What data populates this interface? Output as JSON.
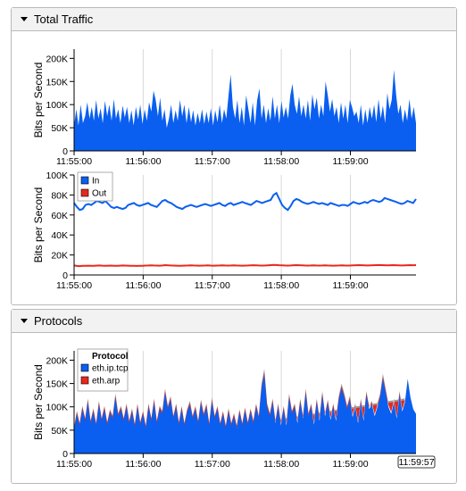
{
  "panels": [
    {
      "title": "Total Traffic"
    },
    {
      "title": "Protocols"
    }
  ],
  "colors": {
    "blue": "#0a5ff0",
    "red": "#e8281c",
    "gray": "#9a9a9a"
  },
  "chart_data": [
    {
      "type": "area",
      "ylabel": "Bits per Second",
      "ylim": [
        0,
        220000
      ],
      "yticks": [
        "0",
        "50K",
        "100K",
        "150K",
        "200K"
      ],
      "ytick_values": [
        0,
        50000,
        100000,
        150000,
        200000
      ],
      "x_labels": [
        "11:55:00",
        "11:56:00",
        "11:57:00",
        "11:58:00",
        "11:59:00"
      ],
      "x_label_minutes": [
        0,
        1,
        2,
        3,
        4
      ],
      "xlim_minutes": [
        0,
        4.95
      ],
      "grid": true,
      "series": [
        {
          "color": "blue",
          "values": [
            55000,
            90000,
            55000,
            100000,
            60000,
            75000,
            105000,
            70000,
            95000,
            65000,
            110000,
            70000,
            92000,
            60000,
            108000,
            75000,
            100000,
            65000,
            112000,
            70000,
            90000,
            60000,
            98000,
            72000,
            95000,
            60000,
            88000,
            55000,
            95000,
            68000,
            100000,
            58000,
            90000,
            65000,
            105000,
            85000,
            130000,
            110000,
            75000,
            115000,
            65000,
            90000,
            50000,
            70000,
            100000,
            60000,
            88000,
            65000,
            110000,
            75000,
            100000,
            60000,
            95000,
            62000,
            88000,
            55000,
            82000,
            60000,
            90000,
            58000,
            85000,
            60000,
            92000,
            55000,
            88000,
            62000,
            100000,
            60000,
            90000,
            70000,
            120000,
            165000,
            95000,
            70000,
            110000,
            60000,
            95000,
            55000,
            120000,
            90000,
            60000,
            105000,
            55000,
            110000,
            135000,
            70000,
            100000,
            60000,
            92000,
            65000,
            118000,
            70000,
            100000,
            60000,
            108000,
            72000,
            95000,
            70000,
            120000,
            145000,
            100000,
            80000,
            118000,
            75000,
            100000,
            70000,
            110000,
            65000,
            122000,
            90000,
            115000,
            70000,
            100000,
            75000,
            150000,
            120000,
            85000,
            112000,
            75000,
            95000,
            60000,
            105000,
            70000,
            100000,
            60000,
            110000,
            95000,
            75000,
            85000,
            60000,
            100000,
            55000,
            90000,
            60000,
            95000,
            70000,
            100000,
            62000,
            112000,
            70000,
            98000,
            60000,
            125000,
            90000,
            110000,
            175000,
            120000,
            80000,
            100000,
            60000,
            90000,
            65000,
            112000,
            70000,
            95000,
            60000
          ]
        }
      ]
    },
    {
      "type": "line",
      "ylabel": "Bits per Second",
      "ylim": [
        0,
        100000
      ],
      "yticks": [
        "0",
        "20K",
        "40K",
        "60K",
        "80K",
        "100K"
      ],
      "ytick_values": [
        0,
        20000,
        40000,
        60000,
        80000,
        100000
      ],
      "x_labels": [
        "11:55:00",
        "11:56:00",
        "11:57:00",
        "11:58:00",
        "11:59:00"
      ],
      "x_label_minutes": [
        0,
        1,
        2,
        3,
        4
      ],
      "xlim_minutes": [
        0,
        4.95
      ],
      "grid": true,
      "legend": "top-left",
      "series": [
        {
          "name": "In",
          "color": "blue",
          "values": [
            72000,
            68000,
            65000,
            66000,
            70000,
            71000,
            70000,
            72000,
            74000,
            73000,
            72000,
            74000,
            71000,
            68000,
            67000,
            68000,
            67000,
            66000,
            67000,
            70000,
            71000,
            72000,
            70000,
            69000,
            70000,
            71000,
            72000,
            70000,
            69000,
            68000,
            71000,
            74000,
            75000,
            73000,
            72000,
            70000,
            68000,
            67000,
            66000,
            68000,
            69000,
            70000,
            69000,
            68000,
            69000,
            70000,
            71000,
            70000,
            69000,
            70000,
            71000,
            72000,
            70000,
            69000,
            71000,
            72000,
            70000,
            71000,
            72000,
            73000,
            72000,
            71000,
            70000,
            72000,
            74000,
            73000,
            72000,
            73000,
            74000,
            75000,
            80000,
            82000,
            76000,
            70000,
            67000,
            65000,
            69000,
            74000,
            76000,
            75000,
            73000,
            72000,
            71000,
            72000,
            73000,
            72000,
            71000,
            72000,
            71000,
            70000,
            72000,
            71000,
            70000,
            69000,
            70000,
            70000,
            69000,
            71000,
            73000,
            72000,
            71000,
            72000,
            73000,
            72000,
            74000,
            75000,
            74000,
            73000,
            74000,
            77000,
            76000,
            75000,
            74000,
            73000,
            72000,
            71000,
            72000,
            74000,
            73000,
            72000,
            76000
          ]
        },
        {
          "name": "Out",
          "color": "red",
          "values": [
            9500,
            9000,
            8800,
            9200,
            9100,
            9300,
            9200,
            9100,
            9400,
            9500,
            9300,
            9200,
            9300,
            9400,
            9200,
            9100,
            9300,
            9500,
            9400,
            9300,
            9200,
            9100,
            9000,
            9100,
            9200,
            9400,
            9500,
            9600,
            9500,
            9400,
            9300,
            9500,
            9800,
            9600,
            9500,
            9400,
            9300,
            9200,
            9300,
            9400,
            9500,
            9600,
            9500,
            9400,
            9300,
            9400,
            9500,
            9600,
            9400,
            9300,
            9400,
            9500,
            9600,
            9500,
            9400,
            9500,
            9600,
            9500,
            9400,
            9300,
            9400,
            9500,
            9600,
            9700,
            9600,
            9500,
            9400,
            9500,
            9600,
            9800,
            10000,
            9900,
            9700,
            9600,
            9500,
            9400,
            9500,
            9700,
            9800,
            9700,
            9600,
            9500,
            9400,
            9500,
            9600,
            9500,
            9400,
            9500,
            9600,
            9500,
            9400,
            9300,
            9400,
            9500,
            9600,
            9500,
            9400,
            9500,
            9600,
            9700,
            9800,
            9700,
            9600,
            9500,
            9600,
            9700,
            9800,
            9900,
            9800,
            9700,
            9600,
            9700,
            9800,
            9700,
            9600,
            9500,
            9600,
            9700,
            9800,
            9700,
            9800
          ]
        }
      ]
    },
    {
      "type": "area",
      "stacked": true,
      "ylabel": "Bits per Second",
      "ylim": [
        0,
        220000
      ],
      "yticks": [
        "0",
        "50K",
        "100K",
        "150K",
        "200K"
      ],
      "ytick_values": [
        0,
        50000,
        100000,
        150000,
        200000
      ],
      "x_labels": [
        "11:55:00",
        "11:56:00",
        "11:57:00",
        "11:58:00",
        "11:59:00"
      ],
      "x_label_minutes": [
        0,
        1,
        2,
        3,
        4
      ],
      "xlim_minutes": [
        0,
        4.95
      ],
      "grid": true,
      "legend": "top-left",
      "legend_title": "Protocol",
      "hover_label": "11:59:57",
      "hover_minutes": 4.95,
      "series": [
        {
          "name": "eth.ip.tcp",
          "color": "blue",
          "values": [
            52000,
            85000,
            60000,
            95000,
            70000,
            110000,
            65000,
            90000,
            60000,
            105000,
            70000,
            95000,
            62000,
            88000,
            75000,
            120000,
            80000,
            95000,
            70000,
            100000,
            65000,
            90000,
            58000,
            100000,
            62000,
            85000,
            55000,
            100000,
            70000,
            110000,
            65000,
            95000,
            85000,
            130000,
            95000,
            115000,
            75000,
            100000,
            62000,
            95000,
            60000,
            88000,
            105000,
            75000,
            95000,
            65000,
            108000,
            80000,
            100000,
            60000,
            112000,
            75000,
            95000,
            60000,
            85000,
            55000,
            90000,
            60000,
            80000,
            55000,
            88000,
            60000,
            92000,
            62000,
            90000,
            65000,
            100000,
            75000,
            140000,
            170000,
            100000,
            80000,
            110000,
            65000,
            100000,
            60000,
            95000,
            60000,
            120000,
            85000,
            100000,
            65000,
            110000,
            75000,
            130000,
            80000,
            100000,
            62000,
            110000,
            70000,
            125000,
            80000,
            108000,
            72000,
            100000,
            70000,
            115000,
            140000,
            120000,
            95000,
            115000,
            78000,
            100000,
            65000,
            110000,
            70000,
            125000,
            95000,
            105000,
            80000,
            100000,
            120000,
            160000,
            130000,
            100000,
            85000,
            110000,
            75000,
            125000,
            90000,
            110000,
            160000,
            120000,
            95000,
            85000
          ]
        },
        {
          "name": "eth.arp",
          "color": "red",
          "values": [
            1500,
            1500,
            1500,
            1500,
            1500,
            1500,
            1500,
            1500,
            1500,
            1500,
            1500,
            1500,
            1500,
            1500,
            1500,
            1500,
            1500,
            1500,
            1500,
            1500,
            1500,
            1500,
            1500,
            1500,
            1500,
            1500,
            1500,
            1500,
            1500,
            1500,
            1500,
            1500,
            1500,
            1500,
            1500,
            1500,
            1500,
            1500,
            1500,
            1500,
            1500,
            1500,
            1500,
            1500,
            1500,
            1500,
            1500,
            1500,
            1500,
            1500,
            1500,
            1500,
            1500,
            1500,
            1500,
            1500,
            1500,
            1500,
            1500,
            1500,
            1500,
            1500,
            1500,
            1500,
            1500,
            1500,
            1500,
            1500,
            1500,
            1500,
            1500,
            1500,
            1500,
            1500,
            1500,
            1500,
            1500,
            1500,
            1500,
            1500,
            1500,
            1500,
            1500,
            1500,
            1500,
            1500,
            1500,
            1500,
            1500,
            1500,
            1500,
            1500,
            1500,
            1500,
            1500,
            1500,
            1500,
            1500,
            1500,
            1500,
            1500,
            1500,
            1500,
            1500,
            1500,
            1500,
            1500,
            1500,
            1500,
            1500,
            1500,
            1500,
            1500,
            1500,
            1500,
            1500,
            1500,
            1500,
            1500,
            1500,
            1500
          ]
        }
      ]
    }
  ]
}
